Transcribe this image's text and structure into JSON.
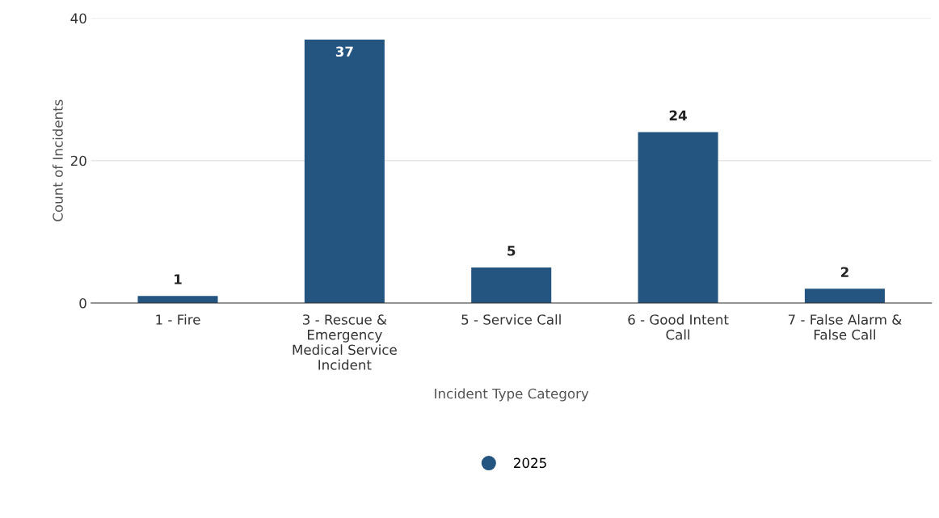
{
  "chart_data": {
    "type": "bar",
    "categories": [
      "1 - Fire",
      "3 - Rescue &\nEmergency\nMedical Service\nIncident",
      "5 - Service Call",
      "6 - Good Intent\nCall",
      "7 - False Alarm &\nFalse Call"
    ],
    "series": [
      {
        "name": "2025",
        "color": "#245480",
        "values": [
          1,
          37,
          5,
          24,
          2
        ]
      }
    ],
    "xlabel": "Incident Type Category",
    "ylabel": "Count of Incidents",
    "ylim": [
      0,
      40
    ],
    "yticks": [
      0,
      20,
      40
    ],
    "grid": "y",
    "legend": "bottom",
    "data_labels": true
  }
}
